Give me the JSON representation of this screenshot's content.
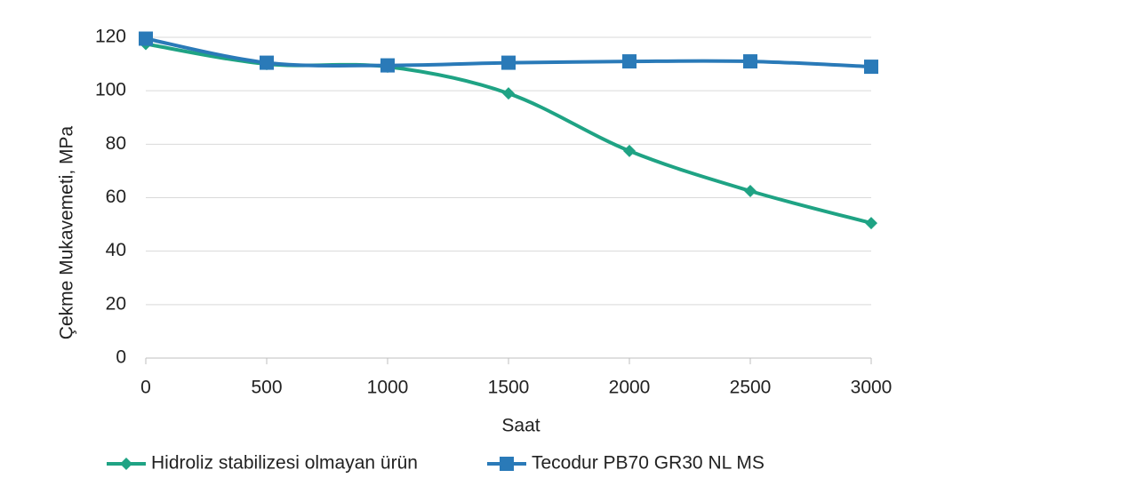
{
  "chart_data": {
    "type": "line",
    "x_label": "Saat",
    "y_label": "Çekme Mukavemeti, MPa",
    "x": [
      0,
      500,
      1000,
      1500,
      2000,
      2500,
      3000
    ],
    "series": [
      {
        "name": "Hidroliz stabilizesi olmayan ürün",
        "color": "#1fa384",
        "marker": "diamond",
        "values": [
          117.5,
          110,
          109,
          99,
          77.5,
          62.5,
          50.5
        ]
      },
      {
        "name": "Tecodur PB70 GR30 NL MS",
        "color": "#2a7ab8",
        "marker": "square",
        "values": [
          119.5,
          110.5,
          109.5,
          110.5,
          111,
          111,
          109
        ]
      }
    ],
    "xlim": [
      0,
      3000
    ],
    "xticks": [
      0,
      500,
      1000,
      1500,
      2000,
      2500,
      3000
    ],
    "ylim": [
      0,
      120
    ],
    "yticks": [
      0,
      20,
      40,
      60,
      80,
      100,
      120
    ],
    "grid": true,
    "smooth": true,
    "legend": "bottom"
  }
}
